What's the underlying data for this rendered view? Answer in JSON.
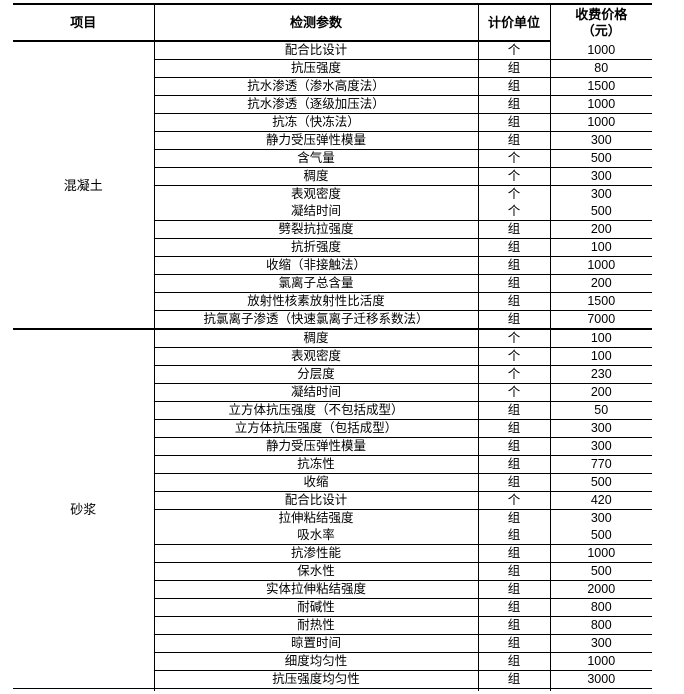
{
  "colors": {
    "background": "#ffffff",
    "border": "#000000",
    "text": "#000000"
  },
  "table": {
    "headers": {
      "item": "项目",
      "param": "检测参数",
      "unit": "计价单位",
      "price_line1": "收费价格",
      "price_line2": "（元）"
    },
    "sections": [
      {
        "name": "混凝土",
        "rows": [
          {
            "param": "配合比设计",
            "unit": "个",
            "price": "1000"
          },
          {
            "param": "抗压强度",
            "unit": "组",
            "price": "80"
          },
          {
            "param": "抗水渗透（渗水高度法）",
            "unit": "组",
            "price": "1500"
          },
          {
            "param": "抗水渗透（逐级加压法）",
            "unit": "组",
            "price": "1000"
          },
          {
            "param": "抗冻（快冻法）",
            "unit": "组",
            "price": "1000"
          },
          {
            "param": "静力受压弹性模量",
            "unit": "组",
            "price": "300"
          },
          {
            "param": "含气量",
            "unit": "个",
            "price": "500"
          },
          {
            "param": "稠度",
            "unit": "个",
            "price": "300"
          },
          {
            "param": "表观密度",
            "unit": "个",
            "price": "300",
            "merge_below": true
          },
          {
            "param": "凝结时间",
            "unit": "个",
            "price": "500"
          },
          {
            "param": "劈裂抗拉强度",
            "unit": "组",
            "price": "200"
          },
          {
            "param": "抗折强度",
            "unit": "组",
            "price": "100"
          },
          {
            "param": "收缩（非接触法）",
            "unit": "组",
            "price": "1000"
          },
          {
            "param": "氯离子总含量",
            "unit": "组",
            "price": "200"
          },
          {
            "param": "放射性核素放射性比活度",
            "unit": "组",
            "price": "1500"
          },
          {
            "param": "抗氯离子渗透（快速氯离子迁移系数法）",
            "unit": "组",
            "price": "7000"
          }
        ]
      },
      {
        "name": "砂浆",
        "rows": [
          {
            "param": "稠度",
            "unit": "个",
            "price": "100"
          },
          {
            "param": "表观密度",
            "unit": "个",
            "price": "100"
          },
          {
            "param": "分层度",
            "unit": "个",
            "price": "230"
          },
          {
            "param": "凝结时间",
            "unit": "个",
            "price": "200"
          },
          {
            "param": "立方体抗压强度（不包括成型）",
            "unit": "组",
            "price": "50"
          },
          {
            "param": "立方体抗压强度（包括成型）",
            "unit": "组",
            "price": "300"
          },
          {
            "param": "静力受压弹性模量",
            "unit": "组",
            "price": "300"
          },
          {
            "param": "抗冻性",
            "unit": "组",
            "price": "770"
          },
          {
            "param": "收缩",
            "unit": "组",
            "price": "500"
          },
          {
            "param": "配合比设计",
            "unit": "个",
            "price": "420"
          },
          {
            "param": "拉伸粘结强度",
            "unit": "组",
            "price": "300",
            "merge_below": true
          },
          {
            "param": "吸水率",
            "unit": "组",
            "price": "500"
          },
          {
            "param": "抗渗性能",
            "unit": "组",
            "price": "1000"
          },
          {
            "param": "保水性",
            "unit": "组",
            "price": "500"
          },
          {
            "param": "实体拉伸粘结强度",
            "unit": "组",
            "price": "2000"
          },
          {
            "param": "耐碱性",
            "unit": "组",
            "price": "800"
          },
          {
            "param": "耐热性",
            "unit": "组",
            "price": "800"
          },
          {
            "param": "晾置时间",
            "unit": "组",
            "price": "300"
          },
          {
            "param": "细度均匀性",
            "unit": "组",
            "price": "1000"
          },
          {
            "param": "抗压强度均匀性",
            "unit": "组",
            "price": "3000"
          }
        ]
      }
    ]
  }
}
